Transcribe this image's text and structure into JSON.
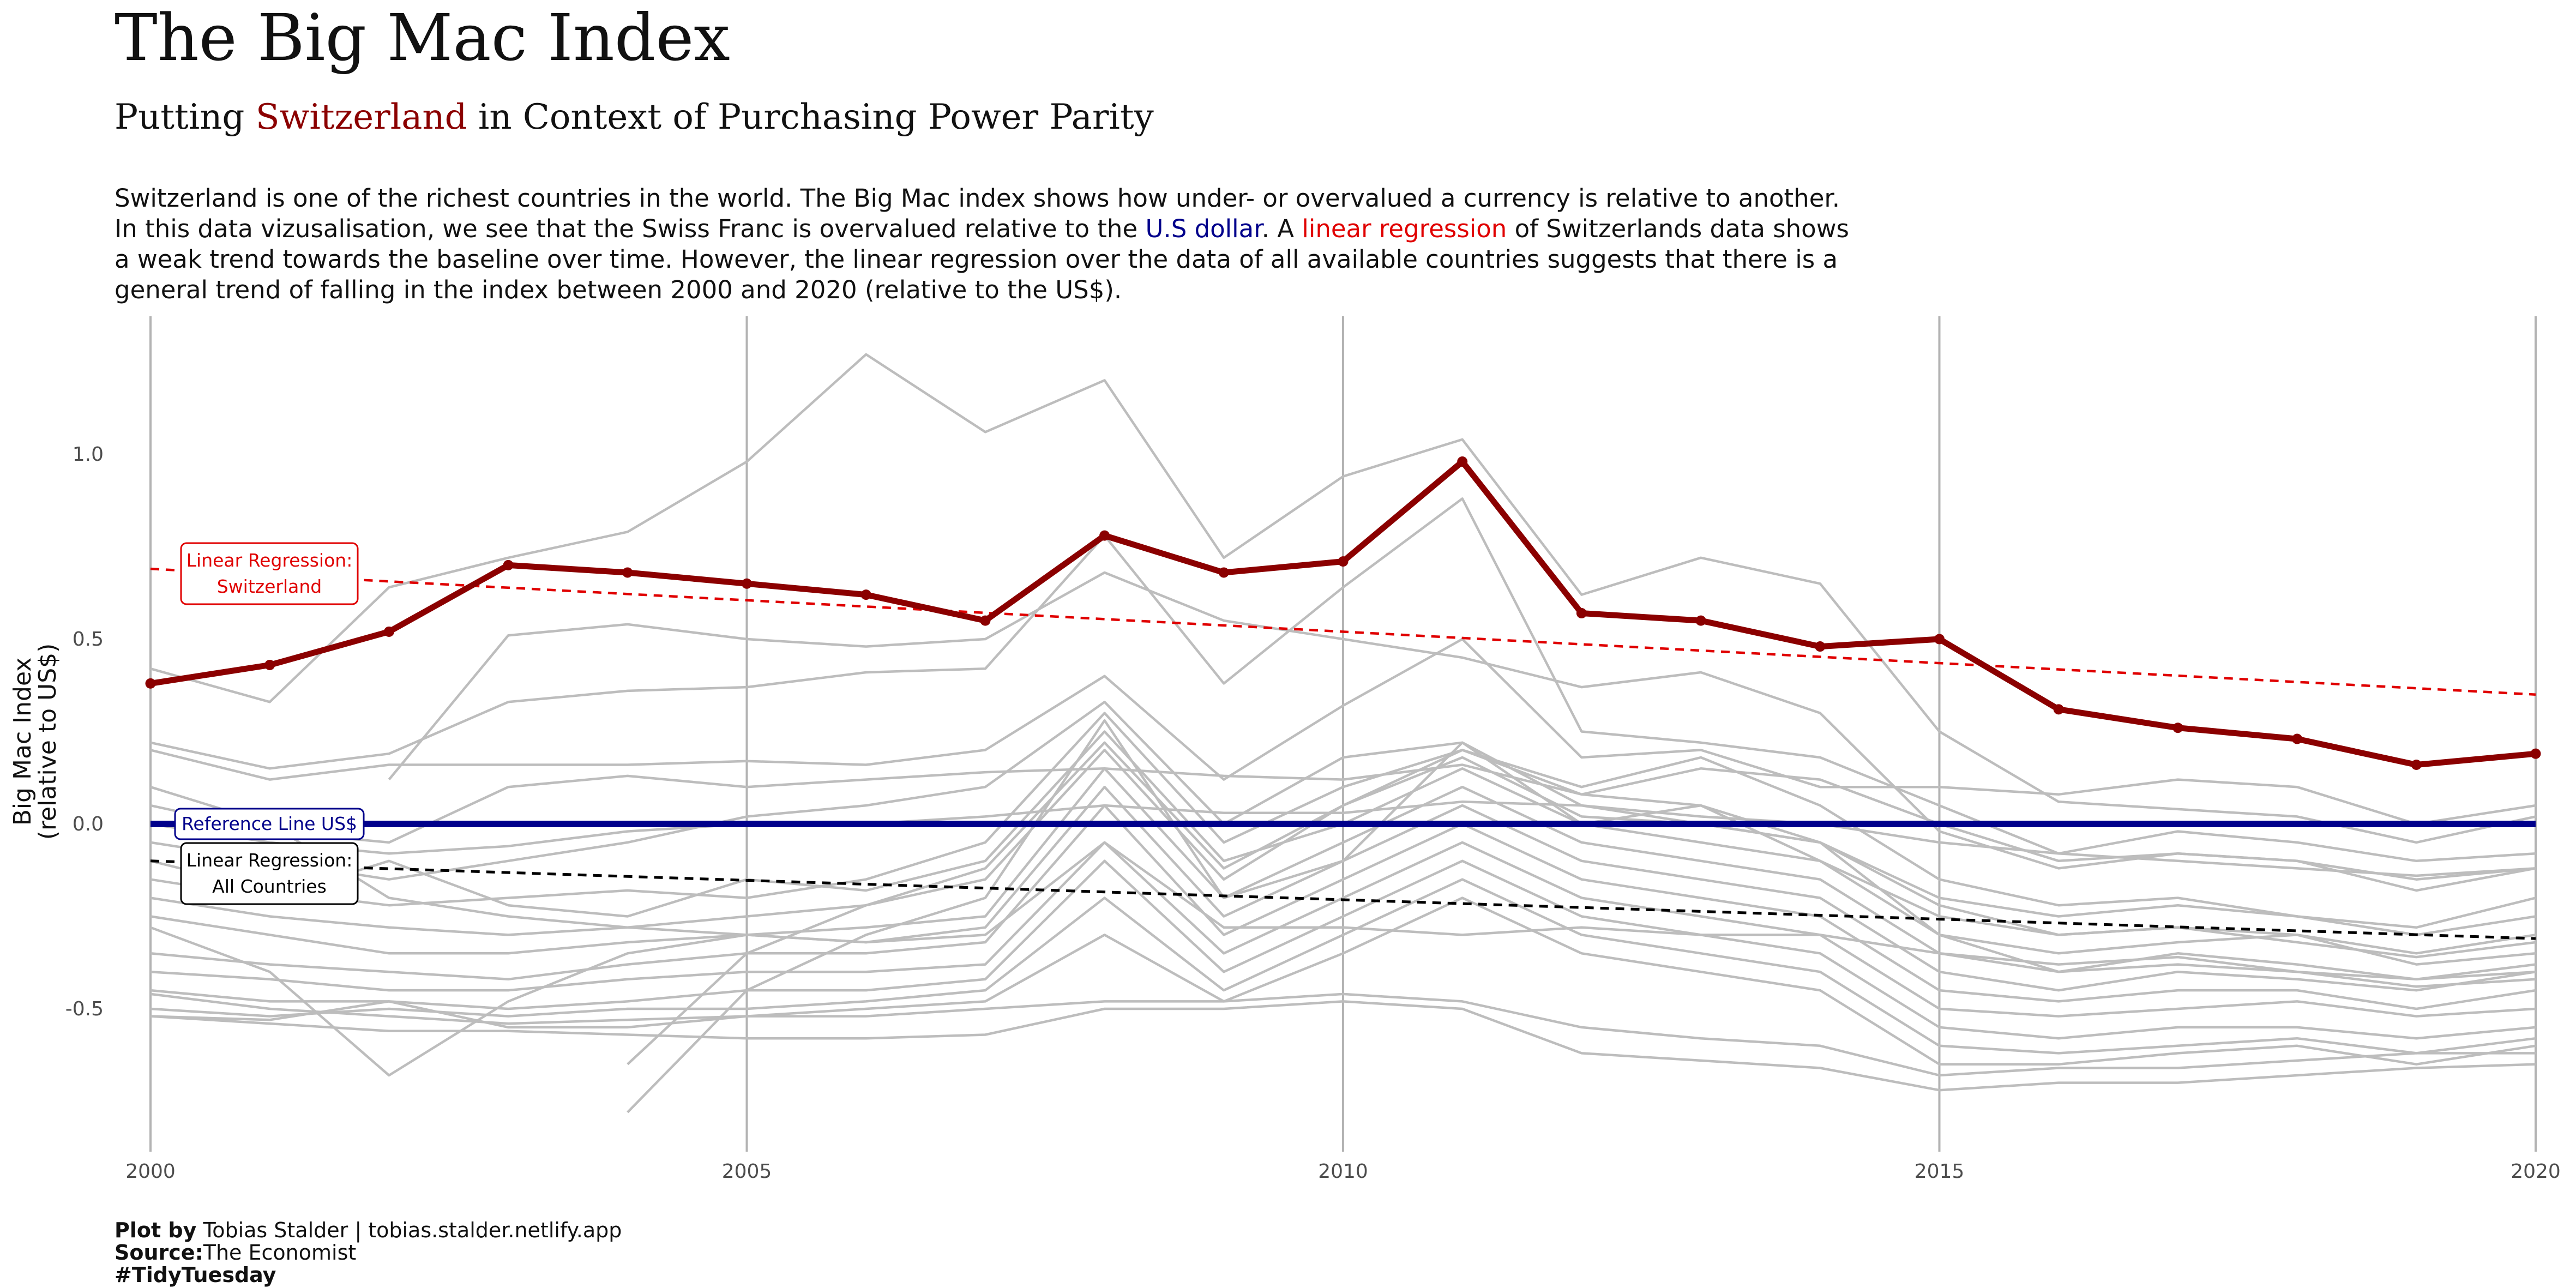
{
  "title": "The Big Mac Index",
  "subtitle": {
    "prefix": "Putting ",
    "highlight": "Switzerland",
    "suffix": " in Context of Purchasing Power Parity"
  },
  "description": {
    "line1": "Switzerland is one of the richest countries in the world. The Big Mac index shows how under- or overvalued a currency is relative to another.",
    "line2_a": "In this data vizusalisation, we see that the Swiss Franc is overvalued relative to the ",
    "line2_usd": "U.S dollar",
    "line2_b": ". A ",
    "line2_lr": "linear regression",
    "line2_c": " of Switzerlands data shows",
    "line3": "a weak trend towards the baseline over time. However, the linear regression over the data of all available countries suggests that there is a",
    "line4": "general trend of falling in the index between 2000 and 2020 (relative to the US$)."
  },
  "caption": {
    "plot_by_label": "Plot by",
    "plot_by_value": " Tobias Stalder | tobias.stalder.netlify.app",
    "source_label": "Source:",
    "source_value": "The Economist",
    "hashtag": "#TidyTuesday"
  },
  "colors": {
    "switzerland": "#8B0000",
    "reference": "#00008B",
    "regression_ch": "#E00000",
    "regression_all": "#000000",
    "other_countries": "#BDBDBD"
  },
  "chart_data": {
    "type": "line",
    "xlabel": "",
    "ylabel": "Big Mac Index\n(relative to US$)",
    "ylabel_lines": [
      "Big Mac Index",
      "(relative to US$)"
    ],
    "xlim": [
      2000,
      2020
    ],
    "ylim": [
      -0.8,
      1.4
    ],
    "x_ticks": [
      2000,
      2005,
      2010,
      2015,
      2020
    ],
    "x_tick_labels": [
      "2000",
      "2005",
      "2010",
      "2015",
      "2020"
    ],
    "y_ticks": [
      -0.5,
      0,
      0.5,
      1
    ],
    "y_tick_labels": [
      "-0.5",
      "0.0",
      "0.5",
      "1.0"
    ],
    "grid": "vertical major only",
    "highlight_series": {
      "name": "Switzerland",
      "x": [
        2000,
        2001,
        2002,
        2003,
        2004,
        2005,
        2006,
        2007,
        2008,
        2009,
        2010,
        2011,
        2012,
        2013,
        2014,
        2015,
        2016,
        2017,
        2018,
        2019,
        2020
      ],
      "values": [
        0.38,
        0.43,
        0.52,
        0.7,
        0.68,
        0.65,
        0.62,
        0.55,
        0.78,
        0.68,
        0.71,
        0.98,
        0.57,
        0.55,
        0.48,
        0.5,
        0.31,
        0.26,
        0.23,
        0.16,
        0.19
      ]
    },
    "reference_line": {
      "label": "Reference Line US$",
      "y": 0.0
    },
    "regression_switzerland": {
      "label_lines": [
        "Linear Regression:",
        "Switzerland"
      ],
      "x": [
        2000,
        2020
      ],
      "y": [
        0.69,
        0.35
      ]
    },
    "regression_all": {
      "label_lines": [
        "Linear Regression:",
        "All Countries"
      ],
      "x": [
        2000,
        2020
      ],
      "y": [
        -0.1,
        -0.31
      ]
    },
    "background_series": [
      {
        "x": [
          2000,
          2001,
          2002,
          2003,
          2004,
          2005,
          2006,
          2007,
          2008,
          2009,
          2010,
          2011,
          2012,
          2013,
          2014,
          2015,
          2016,
          2017,
          2018,
          2019,
          2020
        ],
        "values": [
          0.42,
          0.33,
          0.64,
          0.72,
          0.79,
          0.98,
          1.27,
          1.06,
          1.2,
          0.72,
          0.94,
          1.04,
          0.62,
          0.72,
          0.65,
          0.25,
          0.06,
          0.04,
          0.02,
          -0.05,
          0.02
        ]
      },
      {
        "x": [
          2002,
          2003,
          2004,
          2005,
          2006,
          2007,
          2008,
          2009,
          2010,
          2011,
          2012,
          2013,
          2014,
          2015,
          2016,
          2017,
          2018,
          2019,
          2020
        ],
        "values": [
          0.12,
          0.51,
          0.54,
          0.5,
          0.48,
          0.5,
          0.68,
          0.55,
          0.5,
          0.45,
          0.37,
          0.41,
          0.3,
          -0.02,
          -0.12,
          -0.08,
          -0.1,
          -0.15,
          -0.12
        ]
      },
      {
        "x": [
          2000,
          2001,
          2002,
          2003,
          2004,
          2005,
          2006,
          2007,
          2008,
          2009,
          2010,
          2011,
          2012,
          2013,
          2014,
          2015,
          2016,
          2017,
          2018,
          2019,
          2020
        ],
        "values": [
          0.22,
          0.15,
          0.19,
          0.33,
          0.36,
          0.37,
          0.41,
          0.42,
          0.78,
          0.38,
          0.64,
          0.88,
          0.25,
          0.22,
          0.18,
          0.05,
          -0.08,
          -0.02,
          -0.05,
          -0.1,
          -0.08
        ]
      },
      {
        "x": [
          2000,
          2001,
          2002,
          2003,
          2004,
          2005,
          2006,
          2007,
          2008,
          2009,
          2010,
          2011,
          2012,
          2013,
          2014,
          2015,
          2016,
          2017,
          2018,
          2019,
          2020
        ],
        "values": [
          0.2,
          0.12,
          0.16,
          0.16,
          0.16,
          0.17,
          0.16,
          0.2,
          0.4,
          0.12,
          0.32,
          0.5,
          0.18,
          0.2,
          0.1,
          0.1,
          0.08,
          0.12,
          0.1,
          0.0,
          0.05
        ]
      },
      {
        "x": [
          2000,
          2001,
          2002,
          2003,
          2004,
          2005,
          2006,
          2007,
          2008,
          2009,
          2010,
          2011,
          2012,
          2013,
          2014,
          2015,
          2016,
          2017,
          2018,
          2019,
          2020
        ],
        "values": [
          0.05,
          -0.02,
          -0.05,
          0.1,
          0.13,
          0.1,
          0.12,
          0.14,
          0.15,
          0.13,
          0.12,
          0.16,
          0.08,
          0.15,
          0.12,
          0.0,
          -0.1,
          -0.08,
          -0.1,
          -0.18,
          -0.12
        ]
      },
      {
        "x": [
          2000,
          2001,
          2002,
          2003,
          2004,
          2005,
          2006,
          2007,
          2008,
          2009,
          2010,
          2011,
          2012,
          2013,
          2014,
          2015,
          2016,
          2017,
          2018,
          2019,
          2020
        ],
        "values": [
          -0.05,
          -0.1,
          -0.15,
          -0.1,
          -0.05,
          0.02,
          0.05,
          0.1,
          0.33,
          0.0,
          0.18,
          0.22,
          0.05,
          0.0,
          -0.05,
          -0.2,
          -0.25,
          -0.22,
          -0.25,
          -0.28,
          -0.2
        ]
      },
      {
        "x": [
          2000,
          2001,
          2002,
          2003,
          2004,
          2005,
          2006,
          2007,
          2008,
          2009,
          2010,
          2011,
          2012,
          2013,
          2014,
          2015,
          2016,
          2017,
          2018,
          2019,
          2020
        ],
        "values": [
          -0.1,
          -0.18,
          -0.22,
          -0.2,
          -0.18,
          -0.2,
          -0.15,
          -0.05,
          0.3,
          -0.05,
          0.1,
          0.2,
          0.1,
          0.18,
          0.05,
          -0.15,
          -0.22,
          -0.2,
          -0.25,
          -0.3,
          -0.25
        ]
      },
      {
        "x": [
          2000,
          2001,
          2002,
          2003,
          2004,
          2005,
          2006,
          2007,
          2008,
          2009,
          2010,
          2011,
          2012,
          2013,
          2014,
          2015,
          2016,
          2017,
          2018,
          2019,
          2020
        ],
        "values": [
          -0.15,
          -0.2,
          -0.1,
          -0.22,
          -0.25,
          -0.15,
          -0.18,
          -0.1,
          0.25,
          -0.1,
          0.0,
          0.15,
          0.0,
          0.05,
          -0.1,
          -0.25,
          -0.3,
          -0.28,
          -0.3,
          -0.35,
          -0.3
        ]
      },
      {
        "x": [
          2000,
          2001,
          2002,
          2003,
          2004,
          2005,
          2006,
          2007,
          2008,
          2009,
          2010,
          2011,
          2012,
          2013,
          2014,
          2015,
          2016,
          2017,
          2018,
          2019,
          2020
        ],
        "values": [
          -0.2,
          -0.25,
          -0.28,
          -0.3,
          -0.28,
          -0.25,
          -0.22,
          -0.15,
          0.2,
          -0.15,
          0.05,
          0.2,
          0.08,
          0.05,
          -0.05,
          -0.3,
          -0.35,
          -0.32,
          -0.3,
          -0.38,
          -0.35
        ]
      },
      {
        "x": [
          2000,
          2001,
          2002,
          2003,
          2004,
          2005,
          2006,
          2007,
          2008,
          2009,
          2010,
          2011,
          2012,
          2013,
          2014,
          2015,
          2016,
          2017,
          2018,
          2019,
          2020
        ],
        "values": [
          -0.25,
          -0.3,
          -0.35,
          -0.35,
          -0.32,
          -0.3,
          -0.28,
          -0.25,
          0.15,
          -0.2,
          -0.05,
          0.1,
          -0.05,
          -0.1,
          -0.15,
          -0.35,
          -0.4,
          -0.38,
          -0.4,
          -0.42,
          -0.38
        ]
      },
      {
        "x": [
          2000,
          2001,
          2002,
          2003,
          2004,
          2005,
          2006,
          2007,
          2008,
          2009,
          2010,
          2011,
          2012,
          2013,
          2014,
          2015,
          2016,
          2017,
          2018,
          2019,
          2020
        ],
        "values": [
          -0.28,
          -0.4,
          -0.68,
          -0.48,
          -0.35,
          -0.3,
          -0.32,
          -0.28,
          0.1,
          -0.25,
          -0.1,
          0.05,
          -0.1,
          -0.15,
          -0.2,
          -0.4,
          -0.45,
          -0.4,
          -0.42,
          -0.45,
          -0.4
        ]
      },
      {
        "x": [
          2000,
          2001,
          2002,
          2003,
          2004,
          2005,
          2006,
          2007,
          2008,
          2009,
          2010,
          2011,
          2012,
          2013,
          2014,
          2015,
          2016,
          2017,
          2018,
          2019,
          2020
        ],
        "values": [
          -0.35,
          -0.38,
          -0.4,
          -0.42,
          -0.38,
          -0.35,
          -0.35,
          -0.32,
          0.05,
          -0.3,
          -0.15,
          0.0,
          -0.15,
          -0.2,
          -0.25,
          -0.45,
          -0.48,
          -0.45,
          -0.45,
          -0.5,
          -0.45
        ]
      },
      {
        "x": [
          2000,
          2001,
          2002,
          2003,
          2004,
          2005,
          2006,
          2007,
          2008,
          2009,
          2010,
          2011,
          2012,
          2013,
          2014,
          2015,
          2016,
          2017,
          2018,
          2019,
          2020
        ],
        "values": [
          -0.4,
          -0.42,
          -0.45,
          -0.45,
          -0.42,
          -0.4,
          -0.4,
          -0.38,
          -0.05,
          -0.35,
          -0.2,
          -0.05,
          -0.2,
          -0.25,
          -0.3,
          -0.5,
          -0.52,
          -0.5,
          -0.48,
          -0.52,
          -0.5
        ]
      },
      {
        "x": [
          2000,
          2001,
          2002,
          2003,
          2004,
          2005,
          2006,
          2007,
          2008,
          2009,
          2010,
          2011,
          2012,
          2013,
          2014,
          2015,
          2016,
          2017,
          2018,
          2019,
          2020
        ],
        "values": [
          -0.45,
          -0.48,
          -0.48,
          -0.5,
          -0.48,
          -0.45,
          -0.45,
          -0.42,
          -0.1,
          -0.4,
          -0.25,
          -0.1,
          -0.25,
          -0.3,
          -0.35,
          -0.55,
          -0.58,
          -0.55,
          -0.55,
          -0.58,
          -0.55
        ]
      },
      {
        "x": [
          2000,
          2001,
          2002,
          2003,
          2004,
          2005,
          2006,
          2007,
          2008,
          2009,
          2010,
          2011,
          2012,
          2013,
          2014,
          2015,
          2016,
          2017,
          2018,
          2019,
          2020
        ],
        "values": [
          -0.5,
          -0.52,
          -0.5,
          -0.52,
          -0.5,
          -0.5,
          -0.48,
          -0.45,
          -0.2,
          -0.45,
          -0.3,
          -0.15,
          -0.3,
          -0.35,
          -0.4,
          -0.6,
          -0.62,
          -0.6,
          -0.58,
          -0.62,
          -0.58
        ]
      },
      {
        "x": [
          2000,
          2001,
          2002,
          2003,
          2004,
          2005,
          2006,
          2007,
          2008,
          2009,
          2010,
          2011,
          2012,
          2013,
          2014,
          2015,
          2016,
          2017,
          2018,
          2019,
          2020
        ],
        "values": [
          -0.52,
          -0.53,
          -0.48,
          -0.55,
          -0.55,
          -0.52,
          -0.5,
          -0.48,
          -0.3,
          -0.48,
          -0.35,
          -0.2,
          -0.35,
          -0.4,
          -0.45,
          -0.65,
          -0.65,
          -0.62,
          -0.6,
          -0.65,
          -0.6
        ]
      },
      {
        "x": [
          2000,
          2001,
          2002,
          2003,
          2004,
          2005,
          2006,
          2007,
          2008,
          2009,
          2010,
          2011,
          2012,
          2013,
          2014,
          2015,
          2016,
          2017,
          2018,
          2019,
          2020
        ],
        "values": [
          -0.52,
          -0.54,
          -0.56,
          -0.56,
          -0.57,
          -0.58,
          -0.58,
          -0.57,
          -0.5,
          -0.5,
          -0.48,
          -0.5,
          -0.62,
          -0.64,
          -0.66,
          -0.72,
          -0.7,
          -0.7,
          -0.68,
          -0.66,
          -0.65
        ]
      },
      {
        "x": [
          2000,
          2001,
          2002,
          2003,
          2004,
          2005,
          2006,
          2007,
          2008,
          2009,
          2010,
          2011,
          2012,
          2013,
          2014,
          2015,
          2016,
          2017,
          2018,
          2019,
          2020
        ],
        "values": [
          -0.46,
          -0.5,
          -0.52,
          -0.54,
          -0.53,
          -0.52,
          -0.52,
          -0.5,
          -0.48,
          -0.48,
          -0.46,
          -0.48,
          -0.55,
          -0.58,
          -0.6,
          -0.68,
          -0.66,
          -0.66,
          -0.64,
          -0.62,
          -0.62
        ]
      },
      {
        "x": [
          2004,
          2005,
          2006,
          2007,
          2008,
          2009,
          2010,
          2011,
          2012,
          2013,
          2014,
          2015,
          2016,
          2017,
          2018,
          2019,
          2020
        ],
        "values": [
          -0.78,
          -0.45,
          -0.3,
          -0.2,
          0.28,
          -0.2,
          -0.1,
          0.22,
          0.0,
          -0.05,
          -0.1,
          -0.3,
          -0.4,
          -0.35,
          -0.38,
          -0.42,
          -0.4
        ]
      },
      {
        "x": [
          2004,
          2005,
          2006,
          2007,
          2008,
          2009,
          2010,
          2011,
          2012,
          2013,
          2014,
          2015,
          2016,
          2017,
          2018,
          2019,
          2020
        ],
        "values": [
          -0.65,
          -0.35,
          -0.22,
          -0.12,
          0.22,
          -0.12,
          0.05,
          0.18,
          0.02,
          0.0,
          -0.05,
          -0.22,
          -0.3,
          -0.28,
          -0.32,
          -0.36,
          -0.32
        ]
      },
      {
        "x": [
          2000,
          2001,
          2002,
          2003,
          2004,
          2005,
          2006,
          2007,
          2008,
          2009,
          2010,
          2011,
          2012,
          2013,
          2014,
          2015,
          2016,
          2017,
          2018,
          2019,
          2020
        ],
        "values": [
          0.1,
          0.0,
          -0.2,
          -0.25,
          -0.28,
          -0.3,
          -0.32,
          -0.3,
          -0.05,
          -0.28,
          -0.28,
          -0.3,
          -0.28,
          -0.3,
          -0.3,
          -0.35,
          -0.38,
          -0.36,
          -0.4,
          -0.44,
          -0.42
        ]
      },
      {
        "x": [
          2000,
          2001,
          2002,
          2003,
          2004,
          2005,
          2006,
          2007,
          2008,
          2009,
          2010,
          2011,
          2012,
          2013,
          2014,
          2015,
          2016,
          2017,
          2018,
          2019,
          2020
        ],
        "values": [
          0.0,
          -0.05,
          -0.08,
          -0.06,
          -0.02,
          0.0,
          0.0,
          0.02,
          0.05,
          0.03,
          0.03,
          0.06,
          0.05,
          0.02,
          0.0,
          -0.05,
          -0.08,
          -0.1,
          -0.12,
          -0.14,
          -0.12
        ]
      }
    ]
  }
}
